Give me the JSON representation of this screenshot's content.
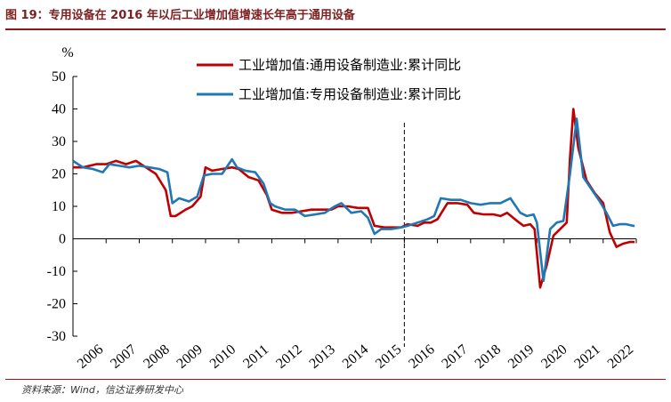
{
  "figure": {
    "title": "图 19：专用设备在 2016 年以后工业增加值增速长年高于通用设备",
    "source": "资料来源：Wind，信达证券研发中心"
  },
  "chart_data": {
    "type": "line",
    "ylabel": "%",
    "ylim": [
      -30,
      50
    ],
    "yticks": [
      -30,
      -20,
      -10,
      0,
      10,
      20,
      30,
      40,
      50
    ],
    "xlim": [
      2006.0,
      2023.0
    ],
    "xtick_labels": [
      "2006",
      "2007",
      "2008",
      "2009",
      "2010",
      "2011",
      "2012",
      "2013",
      "2014",
      "2015",
      "2016",
      "2017",
      "2018",
      "2019",
      "2020",
      "2021",
      "2022"
    ],
    "vline_x": 2016.0,
    "grid": false,
    "legend_position": "top",
    "series": [
      {
        "name": "工业增加值:通用设备制造业:累计同比",
        "color": "#c00000",
        "x": [
          2006.0,
          2006.3,
          2006.7,
          2007.0,
          2007.3,
          2007.6,
          2007.9,
          2008.2,
          2008.5,
          2008.8,
          2008.95,
          2009.1,
          2009.4,
          2009.6,
          2009.85,
          2010.0,
          2010.2,
          2010.5,
          2010.8,
          2011.0,
          2011.3,
          2011.6,
          2011.85,
          2012.0,
          2012.3,
          2012.6,
          2012.9,
          2013.2,
          2013.5,
          2013.8,
          2014.0,
          2014.3,
          2014.6,
          2014.9,
          2015.1,
          2015.4,
          2015.7,
          2015.9,
          2016.1,
          2016.4,
          2016.6,
          2016.8,
          2017.0,
          2017.3,
          2017.6,
          2017.9,
          2018.1,
          2018.4,
          2018.7,
          2018.9,
          2019.1,
          2019.4,
          2019.6,
          2019.8,
          2019.93,
          2020.1,
          2020.3,
          2020.5,
          2020.7,
          2020.9,
          2021.0,
          2021.1,
          2021.25,
          2021.5,
          2021.75,
          2022.0,
          2022.2,
          2022.4,
          2022.6,
          2022.8,
          2022.95
        ],
        "values": [
          22,
          22,
          23,
          23,
          24,
          23,
          24,
          22,
          20,
          15,
          7,
          7,
          9,
          10,
          13,
          22,
          21,
          21.5,
          22,
          21.5,
          19,
          18,
          13.5,
          9,
          8,
          8,
          8.5,
          9,
          9,
          9,
          10,
          10,
          9.5,
          9.5,
          4,
          3.5,
          3.5,
          3.5,
          4.5,
          4,
          5,
          5,
          6,
          11,
          11,
          10.5,
          8,
          7.5,
          7.5,
          7,
          8,
          5.5,
          4,
          4.5,
          3,
          -15,
          -8,
          1,
          3,
          5,
          25,
          40,
          28,
          18,
          14,
          11,
          2,
          -2.5,
          -1.5,
          -1,
          -1
        ]
      },
      {
        "name": "工业增加值:专用设备制造业:累计同比",
        "color": "#1f77b4",
        "x": [
          2006.0,
          2006.3,
          2006.6,
          2006.9,
          2007.1,
          2007.4,
          2007.7,
          2008.0,
          2008.3,
          2008.6,
          2008.85,
          2009.0,
          2009.2,
          2009.5,
          2009.75,
          2009.95,
          2010.2,
          2010.5,
          2010.8,
          2010.95,
          2011.2,
          2011.5,
          2011.75,
          2011.95,
          2012.1,
          2012.4,
          2012.7,
          2013.0,
          2013.3,
          2013.6,
          2013.9,
          2014.1,
          2014.4,
          2014.7,
          2014.9,
          2015.1,
          2015.3,
          2015.6,
          2015.9,
          2016.1,
          2016.4,
          2016.7,
          2016.9,
          2017.1,
          2017.4,
          2017.7,
          2018.0,
          2018.3,
          2018.6,
          2018.9,
          2019.2,
          2019.5,
          2019.7,
          2019.9,
          2020.0,
          2020.2,
          2020.4,
          2020.6,
          2020.8,
          2021.0,
          2021.2,
          2021.4,
          2021.6,
          2021.9,
          2022.1,
          2022.3,
          2022.5,
          2022.7,
          2022.9,
          2022.95
        ],
        "values": [
          24,
          22,
          21.5,
          20.5,
          23,
          22.5,
          22,
          22.5,
          22,
          21.5,
          20.5,
          11,
          12.5,
          11.5,
          13,
          19.5,
          20,
          20,
          24.5,
          22,
          21,
          20.5,
          17,
          11,
          10,
          9,
          9,
          7,
          7.5,
          8,
          10,
          11,
          8,
          8.5,
          6.5,
          1.5,
          3,
          3,
          3.5,
          4,
          5,
          6,
          7,
          12.5,
          12,
          12,
          11,
          10.5,
          11,
          11,
          12.5,
          8,
          7,
          7.5,
          5,
          -13,
          3,
          5,
          5.5,
          20,
          37,
          19,
          16,
          11.5,
          8,
          4,
          4.5,
          4.5,
          4,
          4
        ]
      }
    ]
  }
}
